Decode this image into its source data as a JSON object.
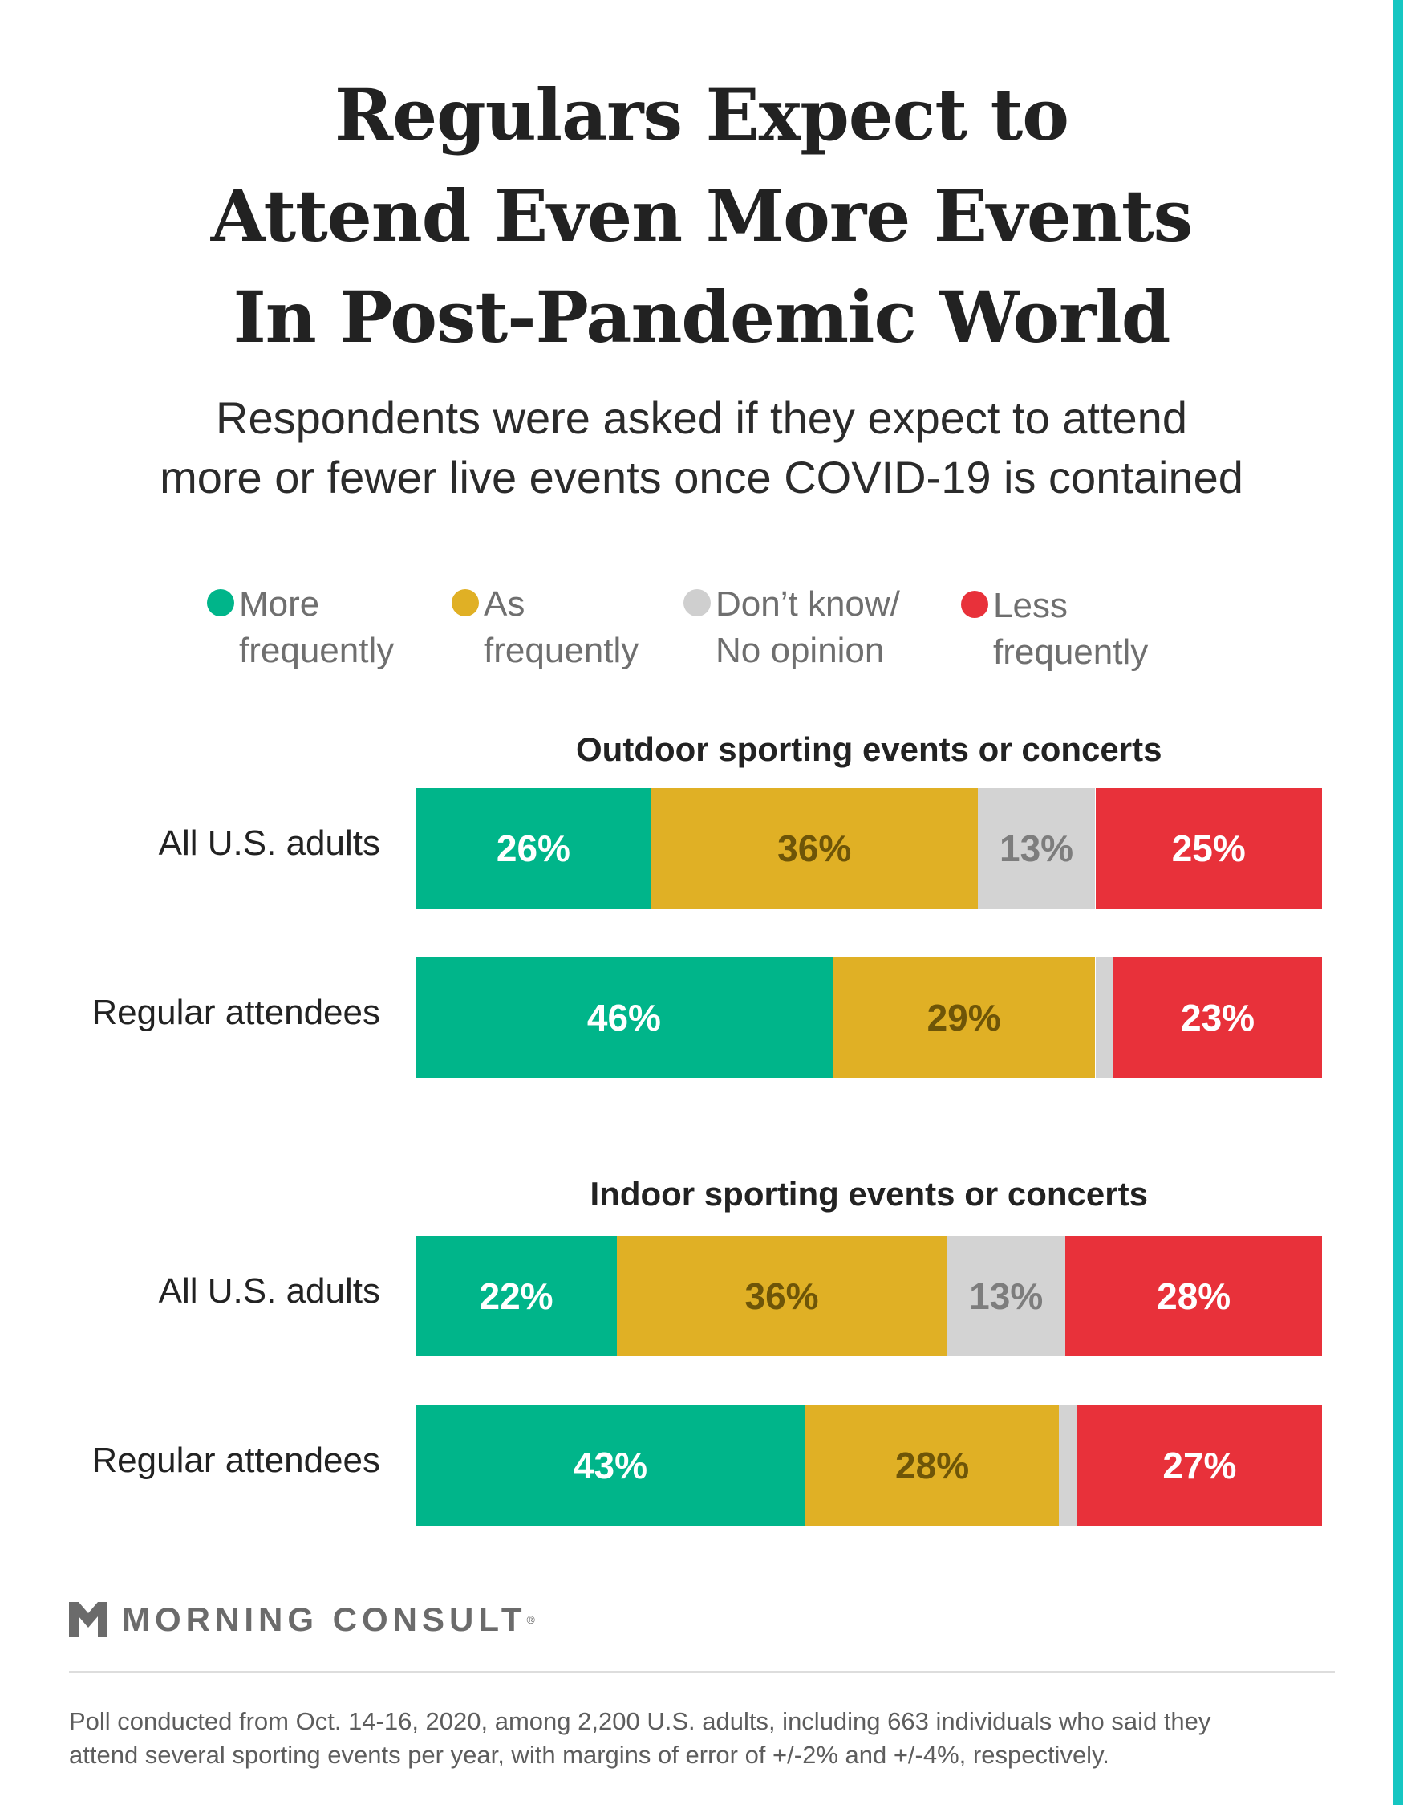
{
  "title": {
    "line1": "Regulars Expect to",
    "line2": "Attend Even More Events",
    "line3": "In Post-Pandemic World"
  },
  "subtitle": {
    "line1": "Respondents were asked if they expect to attend",
    "line2": "more or fewer live events once COVID-19 is contained"
  },
  "legend": [
    {
      "line1": "More",
      "line2": "frequently",
      "color": "#00b58a"
    },
    {
      "line1": "As",
      "line2": "frequently",
      "color": "#e0b025"
    },
    {
      "line1": "Don’t know/",
      "line2": "No opinion",
      "color": "#cfcfcf"
    },
    {
      "line1": "Less",
      "line2": "frequently",
      "color": "#e8313a"
    }
  ],
  "colors": {
    "more": "#00b58a",
    "as": "#e0b025",
    "dontknow": "#d3d3d3",
    "less": "#e8313a",
    "accent": "#16c6c2",
    "label_light": "#ffffff",
    "label_dark_as": "#6e5508",
    "label_dark_dk": "#7d7d7d"
  },
  "chart_data": {
    "type": "bar",
    "orientation": "horizontal",
    "stacked": true,
    "segment_names": [
      "More frequently",
      "As frequently",
      "Don’t know/No opinion",
      "Less frequently"
    ],
    "groups": [
      {
        "title": "Outdoor sporting events or concerts",
        "rows": [
          {
            "label": "All U.S. adults",
            "values": [
              26,
              36,
              13,
              25
            ],
            "labels": [
              "26%",
              "36%",
              "13%",
              "25%"
            ]
          },
          {
            "label": "Regular attendees",
            "values": [
              46,
              29,
              2,
              23
            ],
            "labels": [
              "46%",
              "29%",
              "",
              "23%"
            ]
          }
        ]
      },
      {
        "title": "Indoor sporting events or concerts",
        "rows": [
          {
            "label": "All U.S. adults",
            "values": [
              22,
              36,
              13,
              28
            ],
            "labels": [
              "22%",
              "36%",
              "13%",
              "28%"
            ]
          },
          {
            "label": "Regular attendees",
            "values": [
              43,
              28,
              2,
              27
            ],
            "labels": [
              "43%",
              "28%",
              "",
              "27%"
            ]
          }
        ]
      }
    ]
  },
  "brand": {
    "name": "MORNING CONSULT",
    "reg": "®"
  },
  "footnote": {
    "line1": "Poll conducted from Oct. 14-16, 2020, among 2,200 U.S. adults, including 663 individuals who said they",
    "line2": "attend several sporting events per year, with margins of error of +/-2% and +/-4%, respectively."
  }
}
